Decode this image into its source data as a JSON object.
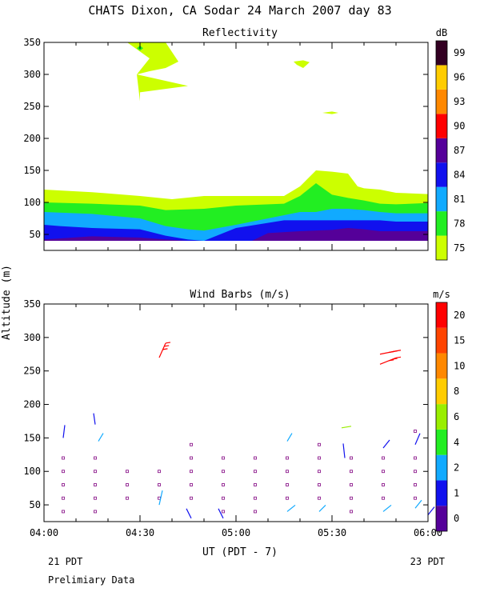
{
  "title": "CHATS Dixon, CA  Sodar  24 March 2007  day  83",
  "footer": {
    "left_date": "21 PDT",
    "right_date": "23 PDT",
    "note": "Prelimiary Data"
  },
  "xaxis": {
    "label": "UT  (PDT - 7)",
    "ticks": [
      "04:00",
      "04:30",
      "05:00",
      "05:30",
      "06:00"
    ],
    "range_min": [
      0,
      120
    ]
  },
  "shared_ylabel": "Altitude (m)",
  "colors": {
    "axis": "#000000",
    "station_dot": "#800080"
  },
  "chart_data": [
    {
      "type": "heatmap",
      "title": "Reflectivity",
      "ylim": [
        25,
        350
      ],
      "yticks": [
        50,
        100,
        150,
        200,
        250,
        300,
        350
      ],
      "colorbar": {
        "unit": "dB",
        "labels": [
          "75",
          "78",
          "81",
          "84",
          "87",
          "90",
          "93",
          "96",
          "99"
        ],
        "colors": [
          "#ccff00",
          "#22ee22",
          "#11aaff",
          "#1111ee",
          "#550099",
          "#ff0000",
          "#ff8800",
          "#ffcc00",
          "#330022"
        ]
      },
      "layers": [
        {
          "level": "75",
          "color": "#ccff00",
          "points": [
            [
              0,
              120
            ],
            [
              15,
              116
            ],
            [
              30,
              110
            ],
            [
              40,
              105
            ],
            [
              50,
              110
            ],
            [
              60,
              110
            ],
            [
              75,
              110
            ],
            [
              80,
              125
            ],
            [
              85,
              150
            ],
            [
              90,
              148
            ],
            [
              95,
              145
            ],
            [
              98,
              125
            ],
            [
              100,
              122
            ],
            [
              105,
              120
            ],
            [
              110,
              115
            ],
            [
              120,
              113
            ],
            [
              120,
              40
            ],
            [
              0,
              40
            ]
          ]
        },
        {
          "level": "78",
          "color": "#22ee22",
          "points": [
            [
              0,
              100
            ],
            [
              15,
              98
            ],
            [
              30,
              95
            ],
            [
              38,
              88
            ],
            [
              50,
              90
            ],
            [
              60,
              95
            ],
            [
              75,
              98
            ],
            [
              80,
              110
            ],
            [
              85,
              130
            ],
            [
              90,
              112
            ],
            [
              95,
              107
            ],
            [
              100,
              103
            ],
            [
              105,
              98
            ],
            [
              110,
              97
            ],
            [
              120,
              99
            ],
            [
              120,
              40
            ],
            [
              0,
              40
            ]
          ]
        },
        {
          "level": "81",
          "color": "#11aaff",
          "points": [
            [
              0,
              85
            ],
            [
              15,
              82
            ],
            [
              30,
              75
            ],
            [
              38,
              63
            ],
            [
              45,
              58
            ],
            [
              50,
              56
            ],
            [
              60,
              65
            ],
            [
              75,
              80
            ],
            [
              80,
              85
            ],
            [
              85,
              85
            ],
            [
              90,
              90
            ],
            [
              95,
              90
            ],
            [
              100,
              88
            ],
            [
              105,
              85
            ],
            [
              110,
              83
            ],
            [
              120,
              83
            ],
            [
              120,
              40
            ],
            [
              0,
              40
            ]
          ]
        },
        {
          "level": "84",
          "color": "#1111ee",
          "points": [
            [
              0,
              65
            ],
            [
              5,
              63
            ],
            [
              15,
              60
            ],
            [
              30,
              58
            ],
            [
              38,
              48
            ],
            [
              45,
              42
            ],
            [
              50,
              40
            ],
            [
              60,
              60
            ],
            [
              75,
              72
            ],
            [
              80,
              72
            ],
            [
              90,
              72
            ],
            [
              95,
              72
            ],
            [
              100,
              72
            ],
            [
              105,
              72
            ],
            [
              110,
              70
            ],
            [
              120,
              70
            ],
            [
              120,
              40
            ],
            [
              0,
              40
            ]
          ]
        },
        {
          "level": "87",
          "color": "#550099",
          "points": [
            [
              0,
              42
            ],
            [
              15,
              47
            ],
            [
              30,
              45
            ],
            [
              38,
              42
            ],
            [
              45,
              40
            ],
            [
              65,
              40
            ],
            [
              70,
              52
            ],
            [
              80,
              55
            ],
            [
              90,
              57
            ],
            [
              95,
              60
            ],
            [
              100,
              58
            ],
            [
              105,
              55
            ],
            [
              110,
              55
            ],
            [
              120,
              55
            ],
            [
              120,
              40
            ],
            [
              0,
              40
            ]
          ]
        }
      ],
      "patches": [
        {
          "level": "75",
          "color": "#ccff00",
          "points": [
            [
              26,
              350
            ],
            [
              38,
              350
            ],
            [
              40,
              335
            ],
            [
              42,
              320
            ],
            [
              38,
              310
            ],
            [
              33,
              305
            ],
            [
              29,
              300
            ],
            [
              45,
              282
            ],
            [
              30,
              272
            ],
            [
              30,
              258
            ],
            [
              29,
              300
            ],
            [
              33,
              325
            ],
            [
              26,
              350
            ]
          ]
        },
        {
          "level": "75",
          "color": "#ccff00",
          "points": [
            [
              78,
              320
            ],
            [
              81,
              322
            ],
            [
              83,
              319
            ],
            [
              81,
              310
            ],
            [
              79,
              315
            ]
          ]
        },
        {
          "level": "75",
          "color": "#ccff00",
          "points": [
            [
              87,
              240
            ],
            [
              90,
              242
            ],
            [
              92,
              240
            ],
            [
              90,
              238
            ]
          ]
        },
        {
          "level": "78",
          "color": "#22ee22",
          "points": [
            [
              30,
              345
            ],
            [
              31,
              341
            ],
            [
              30,
              337
            ],
            [
              29,
              341
            ]
          ]
        }
      ]
    },
    {
      "type": "scatter",
      "title": "Wind Barbs (m/s)",
      "ylim": [
        25,
        350
      ],
      "yticks": [
        50,
        100,
        150,
        200,
        250,
        300,
        350
      ],
      "colorbar": {
        "unit": "m/s",
        "labels": [
          "0",
          "1",
          "2",
          "4",
          "6",
          "8",
          "10",
          "15",
          "20"
        ],
        "colors": [
          "#550099",
          "#1111ee",
          "#11aaff",
          "#22ee22",
          "#99ee00",
          "#ffcc00",
          "#ff8800",
          "#ff4400",
          "#ff0000"
        ]
      },
      "calm_points": [
        [
          6,
          40
        ],
        [
          6,
          60
        ],
        [
          6,
          80
        ],
        [
          6,
          100
        ],
        [
          6,
          120
        ],
        [
          16,
          40
        ],
        [
          16,
          60
        ],
        [
          16,
          80
        ],
        [
          16,
          100
        ],
        [
          16,
          120
        ],
        [
          26,
          60
        ],
        [
          26,
          80
        ],
        [
          26,
          100
        ],
        [
          36,
          60
        ],
        [
          36,
          80
        ],
        [
          36,
          100
        ],
        [
          46,
          60
        ],
        [
          46,
          80
        ],
        [
          46,
          100
        ],
        [
          46,
          120
        ],
        [
          46,
          140
        ],
        [
          56,
          40
        ],
        [
          56,
          60
        ],
        [
          56,
          80
        ],
        [
          56,
          100
        ],
        [
          56,
          120
        ],
        [
          66,
          40
        ],
        [
          66,
          60
        ],
        [
          66,
          80
        ],
        [
          66,
          100
        ],
        [
          66,
          120
        ],
        [
          76,
          60
        ],
        [
          76,
          80
        ],
        [
          76,
          100
        ],
        [
          76,
          120
        ],
        [
          86,
          60
        ],
        [
          86,
          80
        ],
        [
          86,
          100
        ],
        [
          86,
          120
        ],
        [
          86,
          140
        ],
        [
          96,
          40
        ],
        [
          96,
          60
        ],
        [
          96,
          80
        ],
        [
          96,
          100
        ],
        [
          96,
          120
        ],
        [
          106,
          60
        ],
        [
          106,
          80
        ],
        [
          106,
          100
        ],
        [
          106,
          120
        ],
        [
          116,
          60
        ],
        [
          116,
          80
        ],
        [
          116,
          100
        ],
        [
          116,
          120
        ],
        [
          116,
          160
        ]
      ],
      "barbs": [
        {
          "t": 6,
          "alt": 150,
          "dx": 2,
          "dy": 16,
          "color": "#1111ee"
        },
        {
          "t": 16,
          "alt": 170,
          "dx": -2,
          "dy": 14,
          "color": "#1111ee"
        },
        {
          "t": 17,
          "alt": 145,
          "dx": 6,
          "dy": 10,
          "color": "#11aaff"
        },
        {
          "t": 36,
          "alt": 50,
          "dx": 4,
          "dy": 18,
          "color": "#11aaff"
        },
        {
          "t": 36,
          "alt": 270,
          "dx": 8,
          "dy": 18,
          "color": "#ff0000",
          "flags": 3
        },
        {
          "t": 46,
          "alt": 30,
          "dx": -6,
          "dy": 12,
          "color": "#1111ee"
        },
        {
          "t": 56,
          "alt": 30,
          "dx": -6,
          "dy": 12,
          "color": "#1111ee"
        },
        {
          "t": 76,
          "alt": 145,
          "dx": 6,
          "dy": 10,
          "color": "#11aaff"
        },
        {
          "t": 76,
          "alt": 40,
          "dx": 10,
          "dy": 8,
          "color": "#11aaff"
        },
        {
          "t": 86,
          "alt": 40,
          "dx": 8,
          "dy": 8,
          "color": "#11aaff"
        },
        {
          "t": 94,
          "alt": 120,
          "dx": -2,
          "dy": 18,
          "color": "#1111ee"
        },
        {
          "t": 93,
          "alt": 165,
          "dx": 12,
          "dy": 2,
          "color": "#99ee00"
        },
        {
          "t": 105,
          "alt": 260,
          "dx": 20,
          "dy": 8,
          "color": "#ff0000",
          "flags": 3
        },
        {
          "t": 105,
          "alt": 275,
          "dx": 20,
          "dy": 4,
          "color": "#ff0000",
          "flags": 3
        },
        {
          "t": 106,
          "alt": 135,
          "dx": 8,
          "dy": 10,
          "color": "#1111ee"
        },
        {
          "t": 106,
          "alt": 40,
          "dx": 10,
          "dy": 8,
          "color": "#11aaff"
        },
        {
          "t": 116,
          "alt": 140,
          "dx": 6,
          "dy": 14,
          "color": "#1111ee"
        },
        {
          "t": 116,
          "alt": 45,
          "dx": 8,
          "dy": 10,
          "color": "#11aaff"
        },
        {
          "t": 120,
          "alt": 35,
          "dx": 8,
          "dy": 10,
          "color": "#1111ee"
        }
      ]
    }
  ]
}
